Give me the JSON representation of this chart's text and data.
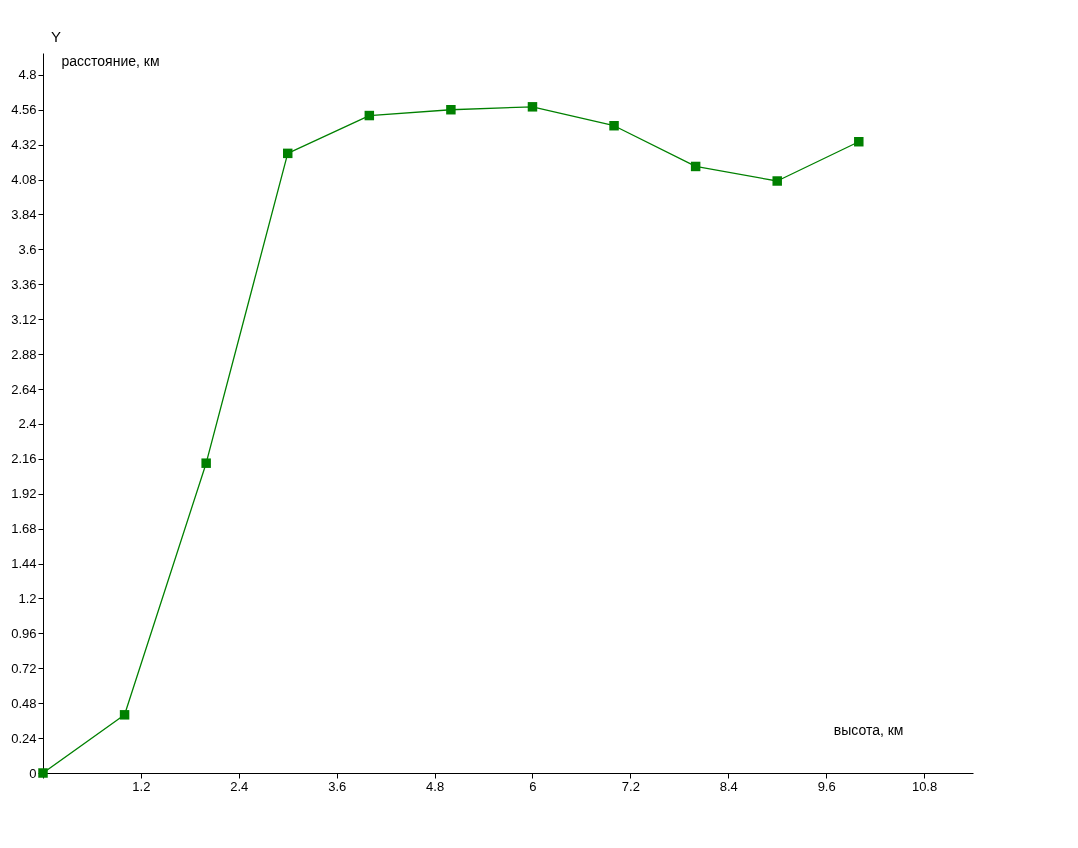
{
  "chart_data": {
    "type": "line",
    "xlabel": "высота, км",
    "ylabel": "расстояние, км",
    "annotations": [
      "Y"
    ],
    "x": [
      0,
      1,
      2,
      3,
      4,
      5,
      6,
      7,
      8,
      9,
      10
    ],
    "series": [
      {
        "color": "#008000",
        "values": [
          0,
          0.4,
          2.13,
          4.26,
          4.52,
          4.56,
          4.58,
          4.45,
          4.17,
          4.07,
          4.34
        ]
      }
    ],
    "marker": "square",
    "line_style": "solid",
    "grid": false,
    "xlim": [
      0,
      11.4
    ],
    "ylim": [
      0,
      4.95
    ],
    "xticks": [
      {
        "value": 0,
        "label": null
      },
      1.2,
      2.4,
      3.6,
      4.8,
      6,
      7.2,
      8.4,
      9.6,
      10.8
    ],
    "yticks": [
      0,
      0.24,
      0.48,
      0.72,
      0.96,
      1.2,
      1.44,
      1.68,
      1.92,
      2.16,
      2.4,
      2.64,
      2.88,
      3.12,
      3.36,
      3.6,
      3.84,
      4.08,
      4.32,
      4.56,
      4.8
    ]
  }
}
